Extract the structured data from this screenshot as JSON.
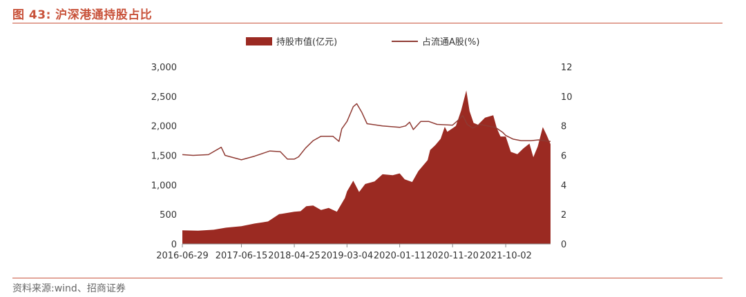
{
  "figure": {
    "title": "图 43:  沪深港通持股占比",
    "source": "资料来源:wind、招商证券"
  },
  "chart_data": {
    "type": "area",
    "title": "",
    "legend": [
      "持股市值(亿元)",
      "占流通A股(%)"
    ],
    "legend_position": "top",
    "grid": false,
    "x_ticks": [
      "2016-06-29",
      "2017-06-15",
      "2018-04-25",
      "2019-03-04",
      "2020-01-11",
      "2020-11-20",
      "2021-10-02"
    ],
    "y_left": {
      "ticks": [
        "0",
        "500",
        "1,000",
        "1,500",
        "2,000",
        "2,500",
        "3,000"
      ],
      "range": [
        0,
        3000
      ]
    },
    "y_right": {
      "ticks": [
        "0",
        "2",
        "4",
        "6",
        "8",
        "10",
        "12"
      ],
      "range": [
        0,
        12
      ]
    },
    "x_range": [
      "2016-06-29",
      "2022-06-25"
    ],
    "series": [
      {
        "name": "持股市值(亿元)",
        "type": "area",
        "axis": "left",
        "color": "#9b2a22",
        "points": [
          [
            "2016-06-29",
            230
          ],
          [
            "2016-10-01",
            225
          ],
          [
            "2017-01-01",
            240
          ],
          [
            "2017-03-15",
            275
          ],
          [
            "2017-06-15",
            300
          ],
          [
            "2017-09-01",
            345
          ],
          [
            "2017-11-20",
            380
          ],
          [
            "2018-01-25",
            505
          ],
          [
            "2018-02-10",
            510
          ],
          [
            "2018-04-25",
            545
          ],
          [
            "2018-06-01",
            555
          ],
          [
            "2018-07-05",
            640
          ],
          [
            "2018-08-15",
            650
          ],
          [
            "2018-10-01",
            575
          ],
          [
            "2018-11-15",
            610
          ],
          [
            "2019-01-03",
            545
          ],
          [
            "2019-02-20",
            780
          ],
          [
            "2019-03-04",
            890
          ],
          [
            "2019-04-10",
            1070
          ],
          [
            "2019-05-15",
            880
          ],
          [
            "2019-06-20",
            1015
          ],
          [
            "2019-08-15",
            1060
          ],
          [
            "2019-10-01",
            1180
          ],
          [
            "2019-12-01",
            1165
          ],
          [
            "2020-01-11",
            1195
          ],
          [
            "2020-02-10",
            1095
          ],
          [
            "2020-03-25",
            1050
          ],
          [
            "2020-05-01",
            1235
          ],
          [
            "2020-06-25",
            1420
          ],
          [
            "2020-07-10",
            1590
          ],
          [
            "2020-08-10",
            1675
          ],
          [
            "2020-09-10",
            1780
          ],
          [
            "2020-10-05",
            1985
          ],
          [
            "2020-10-20",
            1900
          ],
          [
            "2020-11-20",
            1960
          ],
          [
            "2020-12-10",
            2000
          ],
          [
            "2021-01-10",
            2260
          ],
          [
            "2021-02-10",
            2600
          ],
          [
            "2021-03-01",
            2250
          ],
          [
            "2021-03-25",
            2050
          ],
          [
            "2021-04-20",
            2020
          ],
          [
            "2021-06-01",
            2140
          ],
          [
            "2021-07-20",
            2180
          ],
          [
            "2021-08-10",
            1960
          ],
          [
            "2021-09-01",
            1820
          ],
          [
            "2021-10-02",
            1820
          ],
          [
            "2021-11-01",
            1560
          ],
          [
            "2021-12-10",
            1520
          ],
          [
            "2022-01-15",
            1620
          ],
          [
            "2022-02-20",
            1700
          ],
          [
            "2022-03-15",
            1470
          ],
          [
            "2022-04-10",
            1650
          ],
          [
            "2022-05-10",
            1980
          ],
          [
            "2022-06-01",
            1850
          ],
          [
            "2022-06-25",
            1690
          ]
        ]
      },
      {
        "name": "占流通A股(%)",
        "type": "line",
        "axis": "right",
        "color": "#8f3a33",
        "points": [
          [
            "2016-06-29",
            6.05
          ],
          [
            "2016-09-01",
            6.0
          ],
          [
            "2016-12-01",
            6.05
          ],
          [
            "2017-02-15",
            6.55
          ],
          [
            "2017-03-10",
            6.0
          ],
          [
            "2017-06-15",
            5.7
          ],
          [
            "2017-09-01",
            5.95
          ],
          [
            "2017-12-01",
            6.3
          ],
          [
            "2018-02-01",
            6.25
          ],
          [
            "2018-03-15",
            5.75
          ],
          [
            "2018-04-25",
            5.75
          ],
          [
            "2018-05-20",
            5.9
          ],
          [
            "2018-07-01",
            6.5
          ],
          [
            "2018-08-15",
            7.0
          ],
          [
            "2018-10-01",
            7.3
          ],
          [
            "2018-12-10",
            7.3
          ],
          [
            "2019-01-15",
            6.95
          ],
          [
            "2019-02-01",
            7.8
          ],
          [
            "2019-03-04",
            8.3
          ],
          [
            "2019-04-10",
            9.3
          ],
          [
            "2019-05-01",
            9.5
          ],
          [
            "2019-06-01",
            8.9
          ],
          [
            "2019-07-01",
            8.15
          ],
          [
            "2019-10-01",
            8.0
          ],
          [
            "2020-01-11",
            7.9
          ],
          [
            "2020-02-15",
            8.0
          ],
          [
            "2020-03-10",
            8.25
          ],
          [
            "2020-04-01",
            7.75
          ],
          [
            "2020-05-15",
            8.3
          ],
          [
            "2020-07-01",
            8.3
          ],
          [
            "2020-08-20",
            8.1
          ],
          [
            "2020-11-20",
            8.05
          ],
          [
            "2020-12-20",
            8.35
          ],
          [
            "2021-01-20",
            8.7
          ],
          [
            "2021-02-15",
            8.1
          ],
          [
            "2021-03-20",
            7.85
          ],
          [
            "2021-05-01",
            8.1
          ],
          [
            "2021-06-15",
            8.0
          ],
          [
            "2021-08-01",
            7.9
          ],
          [
            "2021-09-15",
            7.55
          ],
          [
            "2021-10-02",
            7.35
          ],
          [
            "2021-11-15",
            7.1
          ],
          [
            "2022-01-01",
            7.0
          ],
          [
            "2022-03-01",
            7.0
          ],
          [
            "2022-04-15",
            7.05
          ],
          [
            "2022-05-15",
            7.0
          ],
          [
            "2022-06-25",
            6.95
          ]
        ]
      }
    ]
  }
}
